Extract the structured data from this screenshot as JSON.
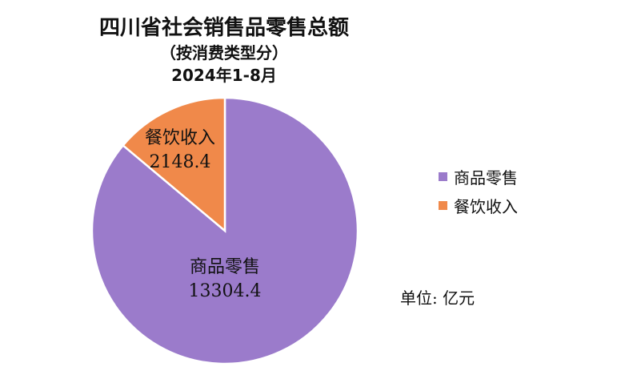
{
  "title": "四川省社会销售品零售总额",
  "subtitle": "（按消费类型分）",
  "period": "2024年1-8月",
  "unit": "单位: 亿元",
  "chart_data": {
    "type": "pie",
    "start_angle_deg": 0,
    "direction": "clockwise",
    "series": [
      {
        "name": "商品零售",
        "value": 13304.4,
        "value_label": "13304.4",
        "color": "#9B7BCB"
      },
      {
        "name": "餐饮收入",
        "value": 2148.4,
        "value_label": "2148.4",
        "color": "#F0894A"
      }
    ],
    "legend": [
      "商品零售",
      "餐饮收入"
    ],
    "legend_position": "right"
  }
}
